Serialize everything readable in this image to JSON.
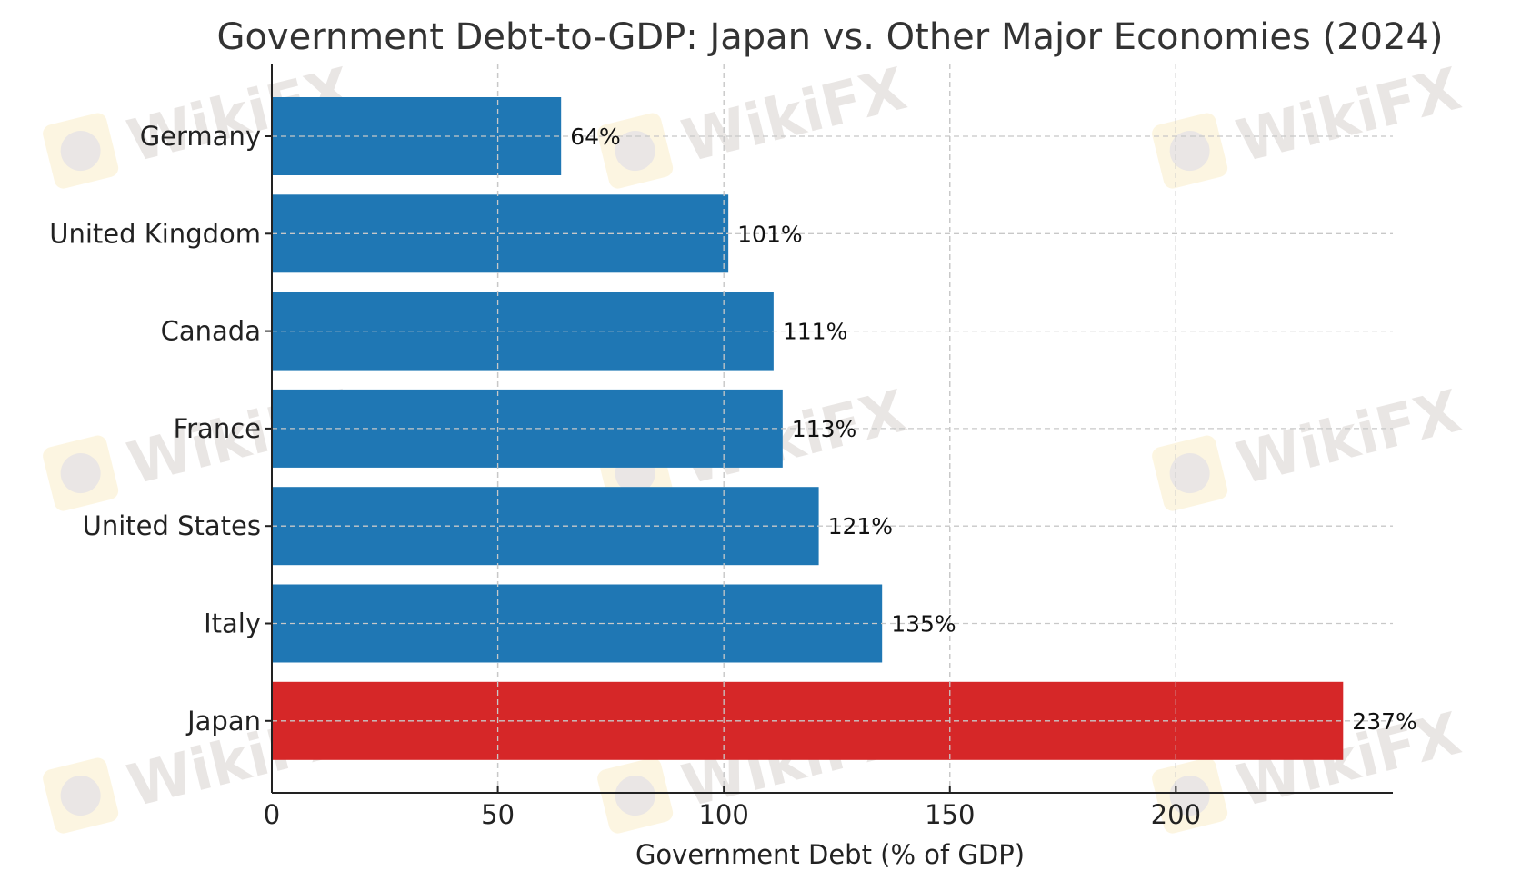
{
  "chart_data": {
    "type": "bar",
    "orientation": "horizontal",
    "title": "Government Debt-to-GDP: Japan vs. Other Major Economies (2024)",
    "xlabel": "Government Debt (% of GDP)",
    "ylabel": "",
    "categories": [
      "Germany",
      "United Kingdom",
      "Canada",
      "France",
      "United States",
      "Italy",
      "Japan"
    ],
    "values": [
      64,
      101,
      111,
      113,
      121,
      135,
      237
    ],
    "data_labels": [
      "64%",
      "101%",
      "111%",
      "113%",
      "121%",
      "135%",
      "237%"
    ],
    "colors": [
      "#1f77b4",
      "#1f77b4",
      "#1f77b4",
      "#1f77b4",
      "#1f77b4",
      "#1f77b4",
      "#d62728"
    ],
    "xlim": [
      0,
      248
    ],
    "xticks": [
      0,
      50,
      100,
      150,
      200
    ],
    "xtick_labels": [
      "0",
      "50",
      "100",
      "150",
      "200"
    ],
    "grid": true,
    "grid_style": "dashed"
  },
  "watermark": {
    "text": "WikiFX",
    "color": "#d8d2cf"
  }
}
